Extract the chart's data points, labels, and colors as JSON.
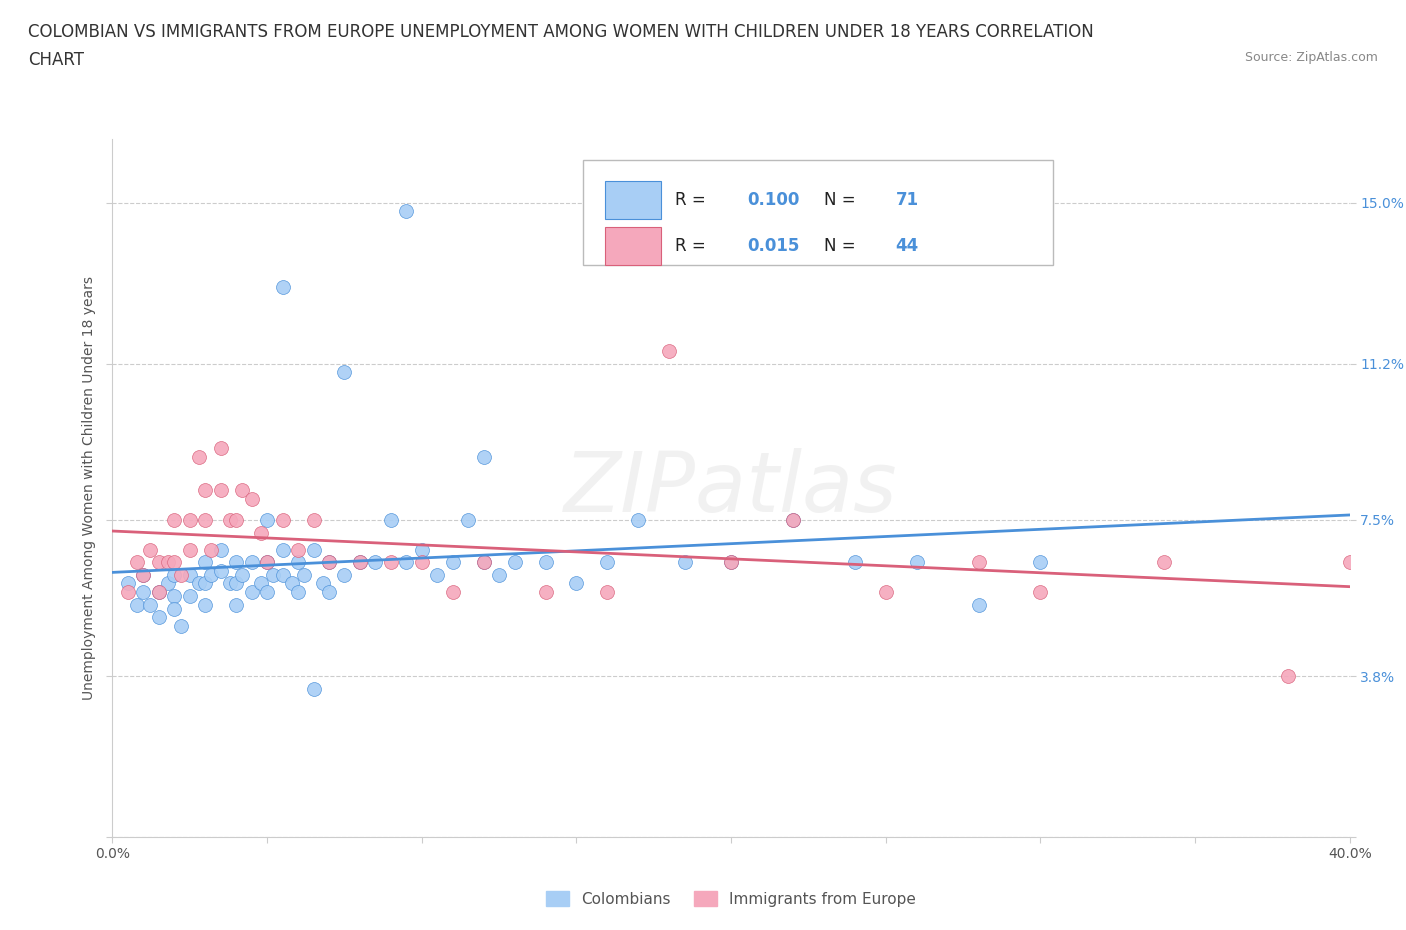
{
  "title_line1": "COLOMBIAN VS IMMIGRANTS FROM EUROPE UNEMPLOYMENT AMONG WOMEN WITH CHILDREN UNDER 18 YEARS CORRELATION",
  "title_line2": "CHART",
  "source": "Source: ZipAtlas.com",
  "ylabel": "Unemployment Among Women with Children Under 18 years",
  "xlim": [
    0.0,
    0.4
  ],
  "ylim": [
    0.0,
    0.165
  ],
  "yticks": [
    0.0,
    0.038,
    0.075,
    0.112,
    0.15
  ],
  "ytick_labels": [
    "",
    "3.8%",
    "7.5%",
    "11.2%",
    "15.0%"
  ],
  "xticks": [
    0.0,
    0.05,
    0.1,
    0.15,
    0.2,
    0.25,
    0.3,
    0.35,
    0.4
  ],
  "xtick_labels": [
    "0.0%",
    "",
    "",
    "",
    "",
    "",
    "",
    "",
    "40.0%"
  ],
  "R_colombians": 0.1,
  "N_colombians": 71,
  "R_europe": 0.015,
  "N_europe": 44,
  "color_colombians": "#a8cef5",
  "color_europe": "#f5a8bc",
  "trend_color_colombians": "#4a90d9",
  "trend_color_europe": "#d9607a",
  "colombians_x": [
    0.005,
    0.008,
    0.01,
    0.01,
    0.012,
    0.015,
    0.015,
    0.018,
    0.02,
    0.02,
    0.02,
    0.022,
    0.025,
    0.025,
    0.028,
    0.03,
    0.03,
    0.03,
    0.032,
    0.035,
    0.035,
    0.038,
    0.04,
    0.04,
    0.04,
    0.042,
    0.045,
    0.045,
    0.048,
    0.05,
    0.05,
    0.05,
    0.052,
    0.055,
    0.055,
    0.058,
    0.06,
    0.06,
    0.062,
    0.065,
    0.065,
    0.068,
    0.07,
    0.07,
    0.075,
    0.08,
    0.085,
    0.09,
    0.095,
    0.1,
    0.105,
    0.11,
    0.115,
    0.12,
    0.125,
    0.13,
    0.14,
    0.15,
    0.16,
    0.17,
    0.185,
    0.2,
    0.22,
    0.24,
    0.26,
    0.28,
    0.3,
    0.055,
    0.075,
    0.095,
    0.12
  ],
  "colombians_y": [
    0.06,
    0.055,
    0.062,
    0.058,
    0.055,
    0.058,
    0.052,
    0.06,
    0.062,
    0.057,
    0.054,
    0.05,
    0.062,
    0.057,
    0.06,
    0.065,
    0.06,
    0.055,
    0.062,
    0.068,
    0.063,
    0.06,
    0.065,
    0.06,
    0.055,
    0.062,
    0.065,
    0.058,
    0.06,
    0.075,
    0.065,
    0.058,
    0.062,
    0.068,
    0.062,
    0.06,
    0.065,
    0.058,
    0.062,
    0.068,
    0.035,
    0.06,
    0.065,
    0.058,
    0.062,
    0.065,
    0.065,
    0.075,
    0.065,
    0.068,
    0.062,
    0.065,
    0.075,
    0.065,
    0.062,
    0.065,
    0.065,
    0.06,
    0.065,
    0.075,
    0.065,
    0.065,
    0.075,
    0.065,
    0.065,
    0.055,
    0.065,
    0.13,
    0.11,
    0.148,
    0.09
  ],
  "europe_x": [
    0.005,
    0.008,
    0.01,
    0.012,
    0.015,
    0.015,
    0.018,
    0.02,
    0.02,
    0.022,
    0.025,
    0.025,
    0.028,
    0.03,
    0.03,
    0.032,
    0.035,
    0.035,
    0.038,
    0.04,
    0.042,
    0.045,
    0.048,
    0.05,
    0.055,
    0.06,
    0.065,
    0.07,
    0.08,
    0.09,
    0.1,
    0.11,
    0.12,
    0.14,
    0.16,
    0.18,
    0.2,
    0.22,
    0.25,
    0.28,
    0.3,
    0.34,
    0.38,
    0.4
  ],
  "europe_y": [
    0.058,
    0.065,
    0.062,
    0.068,
    0.065,
    0.058,
    0.065,
    0.075,
    0.065,
    0.062,
    0.075,
    0.068,
    0.09,
    0.082,
    0.075,
    0.068,
    0.092,
    0.082,
    0.075,
    0.075,
    0.082,
    0.08,
    0.072,
    0.065,
    0.075,
    0.068,
    0.075,
    0.065,
    0.065,
    0.065,
    0.065,
    0.058,
    0.065,
    0.058,
    0.058,
    0.115,
    0.065,
    0.075,
    0.058,
    0.065,
    0.058,
    0.065,
    0.038,
    0.065
  ],
  "background_color": "#ffffff",
  "grid_color": "#cccccc",
  "title_fontsize": 12,
  "axis_label_fontsize": 10,
  "tick_fontsize": 10,
  "legend_label_blue": "R = 0.100   N = 71",
  "legend_label_pink": "R = 0.015   N = 44",
  "bottom_legend_1": "Colombians",
  "bottom_legend_2": "Immigrants from Europe"
}
